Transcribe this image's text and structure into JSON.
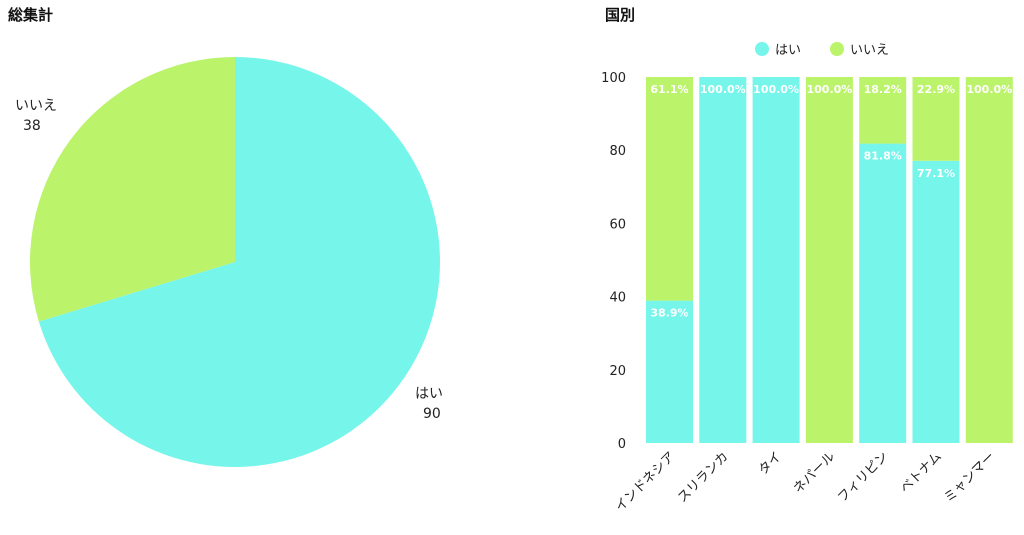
{
  "chart_data": [
    {
      "type": "pie",
      "title": "総集計",
      "slices": [
        {
          "label": "はい",
          "value": 90,
          "color": "#76f5ea"
        },
        {
          "label": "いいえ",
          "value": 38,
          "color": "#bbf36a"
        }
      ]
    },
    {
      "type": "bar",
      "stacked": true,
      "title": "国別",
      "categories": [
        "インドネシア",
        "スリランカ",
        "タイ",
        "ネパール",
        "フィリピン",
        "ベトナム",
        "ミャンマー"
      ],
      "series": [
        {
          "name": "はい",
          "color": "#76f5ea",
          "values": [
            38.9,
            100.0,
            100.0,
            0,
            81.8,
            77.1,
            0
          ]
        },
        {
          "name": "いいえ",
          "color": "#bbf36a",
          "values": [
            61.1,
            0,
            0,
            100.0,
            18.2,
            22.9,
            100.0
          ]
        }
      ],
      "ylim": [
        0,
        100
      ],
      "yticks": [
        0,
        20,
        40,
        60,
        80,
        100
      ],
      "legend_position": "top"
    }
  ]
}
